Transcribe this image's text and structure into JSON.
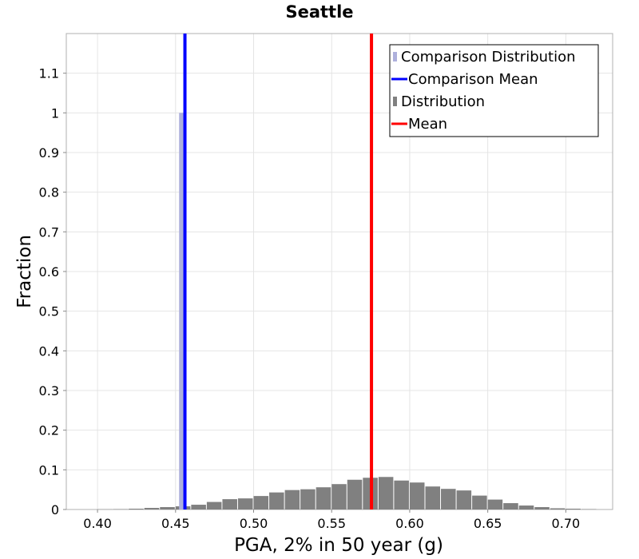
{
  "chart_data": {
    "type": "bar",
    "title": "Seattle",
    "xlabel": "PGA, 2% in 50 year (g)",
    "ylabel": "Fraction",
    "xlim": [
      0.38,
      0.73
    ],
    "ylim": [
      0,
      1.2
    ],
    "x_ticks": [
      {
        "value": 0.4,
        "label": "0.40"
      },
      {
        "value": 0.45,
        "label": "0.45"
      },
      {
        "value": 0.5,
        "label": "0.50"
      },
      {
        "value": 0.55,
        "label": "0.55"
      },
      {
        "value": 0.6,
        "label": "0.60"
      },
      {
        "value": 0.65,
        "label": "0.65"
      },
      {
        "value": 0.7,
        "label": "0.70"
      }
    ],
    "y_ticks": [
      {
        "value": 0,
        "label": "0"
      },
      {
        "value": 0.1,
        "label": "0.1"
      },
      {
        "value": 0.2,
        "label": "0.2"
      },
      {
        "value": 0.3,
        "label": "0.3"
      },
      {
        "value": 0.4,
        "label": "0.4"
      },
      {
        "value": 0.5,
        "label": "0.5"
      },
      {
        "value": 0.6,
        "label": "0.6"
      },
      {
        "value": 0.7,
        "label": "0.7"
      },
      {
        "value": 0.8,
        "label": "0.8"
      },
      {
        "value": 0.9,
        "label": "0.9"
      },
      {
        "value": 1.0,
        "label": "1"
      },
      {
        "value": 1.1,
        "label": "1.1"
      }
    ],
    "grid": true,
    "legend_position": "top-right",
    "bin_width": 0.01,
    "series": [
      {
        "name": "Distribution",
        "kind": "histogram",
        "color": "#808080",
        "bin_centers": [
          0.405,
          0.415,
          0.425,
          0.435,
          0.445,
          0.455,
          0.465,
          0.475,
          0.485,
          0.495,
          0.505,
          0.515,
          0.525,
          0.535,
          0.545,
          0.555,
          0.565,
          0.575,
          0.585,
          0.595,
          0.605,
          0.615,
          0.625,
          0.635,
          0.645,
          0.655,
          0.665,
          0.675,
          0.685,
          0.695,
          0.705,
          0.715
        ],
        "values": [
          0.0005,
          0.001,
          0.002,
          0.004,
          0.006,
          0.008,
          0.012,
          0.019,
          0.026,
          0.028,
          0.034,
          0.043,
          0.049,
          0.051,
          0.056,
          0.064,
          0.075,
          0.08,
          0.082,
          0.073,
          0.068,
          0.058,
          0.052,
          0.048,
          0.035,
          0.025,
          0.016,
          0.01,
          0.006,
          0.003,
          0.002,
          0.001
        ]
      },
      {
        "name": "Comparison Distribution",
        "kind": "histogram",
        "color": "#aeb0dc",
        "bin_centers": [
          0.4545
        ],
        "values": [
          1.0
        ],
        "bar_width": 0.0045
      },
      {
        "name": "Mean",
        "kind": "vline",
        "color": "#ff0000",
        "x": 0.5755
      },
      {
        "name": "Comparison Mean",
        "kind": "vline",
        "color": "#0000ff",
        "x": 0.456
      }
    ],
    "legend": [
      {
        "label": "Comparison Distribution",
        "color": "#aeb0dc",
        "marker": "bar"
      },
      {
        "label": "Comparison Mean",
        "color": "#0000ff",
        "marker": "line"
      },
      {
        "label": "Distribution",
        "color": "#808080",
        "marker": "bar"
      },
      {
        "label": "Mean",
        "color": "#ff0000",
        "marker": "line"
      }
    ]
  }
}
